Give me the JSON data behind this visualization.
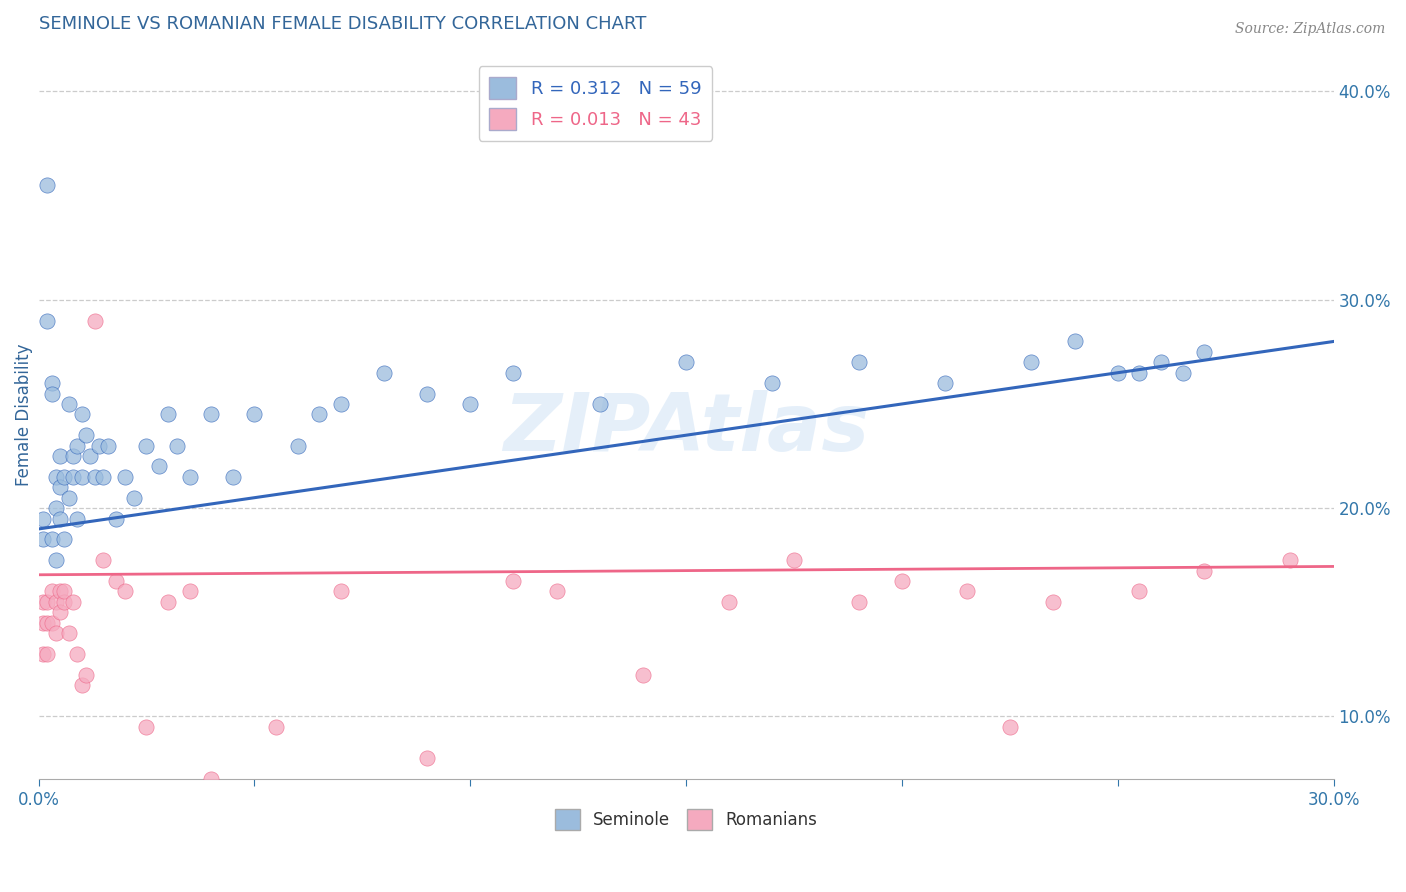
{
  "title": "SEMINOLE VS ROMANIAN FEMALE DISABILITY CORRELATION CHART",
  "source": "Source: ZipAtlas.com",
  "ylabel_left": "Female Disability",
  "seminole_R": 0.312,
  "seminole_N": 59,
  "romanian_R": 0.013,
  "romanian_N": 43,
  "xlim": [
    0.0,
    0.3
  ],
  "ylim": [
    0.07,
    0.42
  ],
  "x_ticks": [
    0.0,
    0.05,
    0.1,
    0.15,
    0.2,
    0.25,
    0.3
  ],
  "y_ticks_right": [
    0.1,
    0.2,
    0.3,
    0.4
  ],
  "color_seminole": "#9BBCDD",
  "color_romanian": "#F5AABF",
  "color_seminole_line": "#3366BB",
  "color_romanian_line": "#EE6688",
  "background_color": "#FFFFFF",
  "watermark_text": "ZIPAtlas",
  "title_color": "#336699",
  "axis_label_color": "#336699",
  "tick_color": "#3377AA",
  "grid_color": "#CCCCCC",
  "seminole_x": [
    0.001,
    0.001,
    0.002,
    0.002,
    0.003,
    0.003,
    0.003,
    0.004,
    0.004,
    0.004,
    0.005,
    0.005,
    0.005,
    0.006,
    0.006,
    0.007,
    0.007,
    0.008,
    0.008,
    0.009,
    0.009,
    0.01,
    0.01,
    0.011,
    0.012,
    0.013,
    0.014,
    0.015,
    0.016,
    0.018,
    0.02,
    0.022,
    0.025,
    0.028,
    0.03,
    0.032,
    0.035,
    0.04,
    0.045,
    0.05,
    0.06,
    0.065,
    0.07,
    0.08,
    0.09,
    0.1,
    0.11,
    0.13,
    0.15,
    0.17,
    0.19,
    0.21,
    0.23,
    0.24,
    0.25,
    0.255,
    0.26,
    0.265,
    0.27
  ],
  "seminole_y": [
    0.195,
    0.185,
    0.355,
    0.29,
    0.26,
    0.255,
    0.185,
    0.215,
    0.2,
    0.175,
    0.225,
    0.21,
    0.195,
    0.215,
    0.185,
    0.25,
    0.205,
    0.225,
    0.215,
    0.23,
    0.195,
    0.245,
    0.215,
    0.235,
    0.225,
    0.215,
    0.23,
    0.215,
    0.23,
    0.195,
    0.215,
    0.205,
    0.23,
    0.22,
    0.245,
    0.23,
    0.215,
    0.245,
    0.215,
    0.245,
    0.23,
    0.245,
    0.25,
    0.265,
    0.255,
    0.25,
    0.265,
    0.25,
    0.27,
    0.26,
    0.27,
    0.26,
    0.27,
    0.28,
    0.265,
    0.265,
    0.27,
    0.265,
    0.275
  ],
  "romanian_x": [
    0.001,
    0.001,
    0.001,
    0.002,
    0.002,
    0.002,
    0.003,
    0.003,
    0.004,
    0.004,
    0.005,
    0.005,
    0.006,
    0.006,
    0.007,
    0.008,
    0.009,
    0.01,
    0.011,
    0.013,
    0.015,
    0.018,
    0.02,
    0.025,
    0.03,
    0.035,
    0.04,
    0.055,
    0.07,
    0.09,
    0.11,
    0.12,
    0.14,
    0.16,
    0.175,
    0.19,
    0.2,
    0.215,
    0.225,
    0.235,
    0.255,
    0.27,
    0.29
  ],
  "romanian_y": [
    0.155,
    0.145,
    0.13,
    0.155,
    0.145,
    0.13,
    0.16,
    0.145,
    0.155,
    0.14,
    0.16,
    0.15,
    0.155,
    0.16,
    0.14,
    0.155,
    0.13,
    0.115,
    0.12,
    0.29,
    0.175,
    0.165,
    0.16,
    0.095,
    0.155,
    0.16,
    0.07,
    0.095,
    0.16,
    0.08,
    0.165,
    0.16,
    0.12,
    0.155,
    0.175,
    0.155,
    0.165,
    0.16,
    0.095,
    0.155,
    0.16,
    0.17,
    0.175
  ]
}
